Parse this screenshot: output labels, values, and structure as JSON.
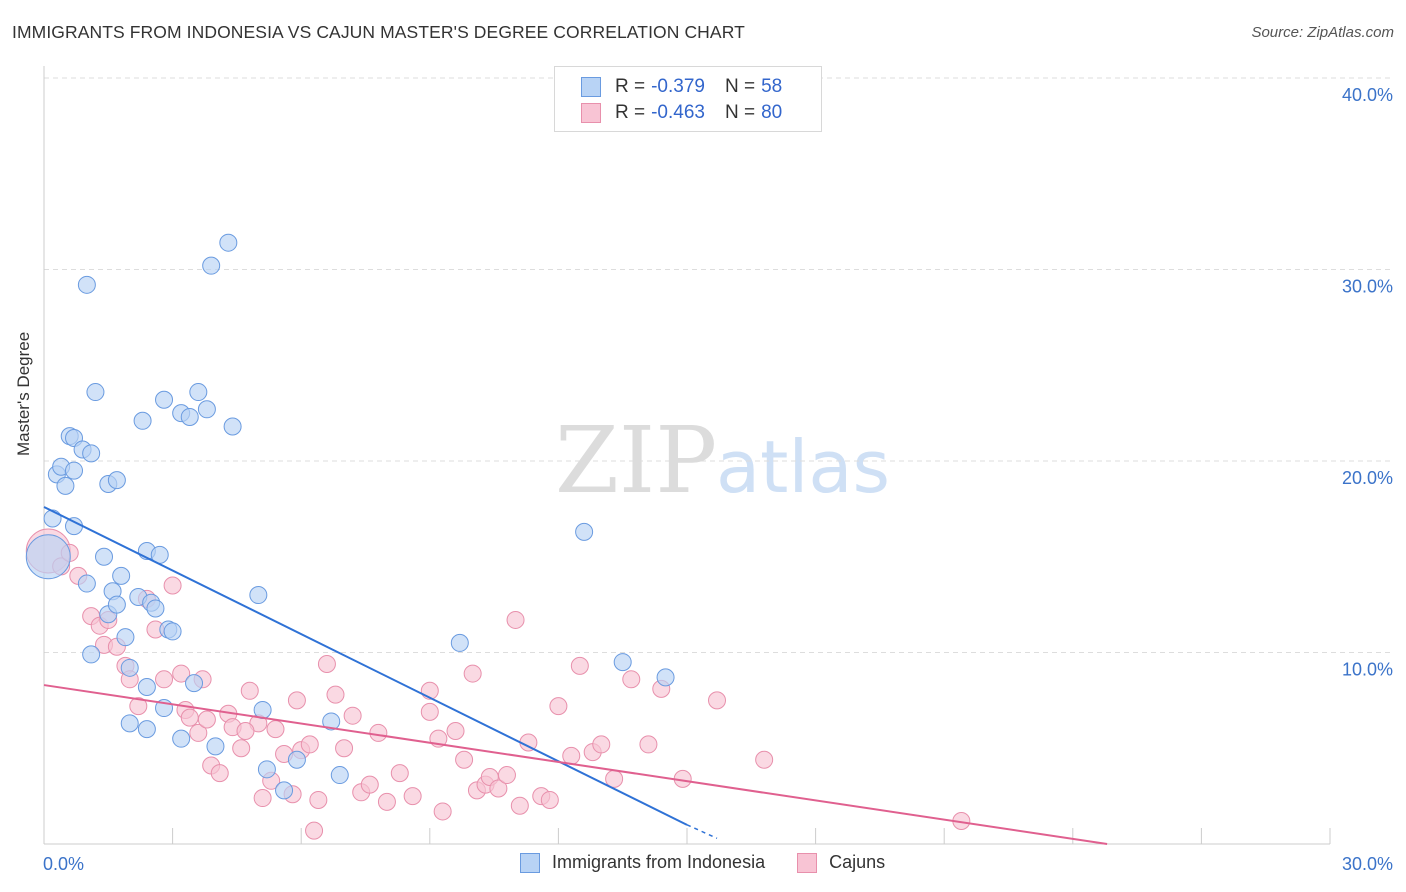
{
  "title": "IMMIGRANTS FROM INDONESIA VS CAJUN MASTER'S DEGREE CORRELATION CHART",
  "source": "Source: ZipAtlas.com",
  "watermark": {
    "zip": "ZIP",
    "atlas": "atlas"
  },
  "legend": {
    "r_label": "R =",
    "n_label": "N =",
    "series": [
      {
        "name": "Immigrants from Indonesia",
        "r": "-0.379",
        "n": "58",
        "fill": "#b8d3f5",
        "stroke": "#6a9be0"
      },
      {
        "name": "Cajuns",
        "r": "-0.463",
        "n": "80",
        "fill": "#f8c4d4",
        "stroke": "#e890ac"
      }
    ]
  },
  "colors": {
    "blue_dot_fill": "#b8d3f5",
    "blue_dot_stroke": "#6a9be0",
    "blue_line": "#2f72d6",
    "pink_dot_fill": "#f8c4d4",
    "pink_dot_stroke": "#e890ac",
    "pink_line": "#e0608f",
    "tick_label": "#3b73c9",
    "grid": "#dddddd"
  },
  "chart_data": {
    "type": "scatter",
    "title": "IMMIGRANTS FROM INDONESIA VS CAJUN MASTER'S DEGREE CORRELATION CHART",
    "xlabel": "",
    "ylabel": "Master's Degree",
    "xlim": [
      0,
      30
    ],
    "ylim": [
      0,
      40
    ],
    "x_tick_labels": [
      "0.0%",
      "30.0%"
    ],
    "y_ticks": [
      10,
      20,
      30,
      40
    ],
    "y_tick_labels": [
      "10.0%",
      "20.0%",
      "30.0%",
      "40.0%"
    ],
    "grid": true,
    "series": [
      {
        "name": "Immigrants from Indonesia",
        "r": -0.379,
        "n": 58,
        "trend": {
          "x": [
            0,
            15.0
          ],
          "y": [
            17.6,
            1.0
          ],
          "dashed_extension": {
            "x": [
              15.0,
              15.7
            ],
            "y": [
              1.0,
              0.3
            ]
          }
        },
        "points": [
          {
            "x": 0.1,
            "y": 15.0,
            "big": true
          },
          {
            "x": 0.2,
            "y": 17.0
          },
          {
            "x": 0.3,
            "y": 19.3
          },
          {
            "x": 0.4,
            "y": 19.7
          },
          {
            "x": 0.5,
            "y": 18.7
          },
          {
            "x": 0.6,
            "y": 21.3
          },
          {
            "x": 0.7,
            "y": 21.2
          },
          {
            "x": 0.9,
            "y": 20.6
          },
          {
            "x": 1.1,
            "y": 20.4
          },
          {
            "x": 0.7,
            "y": 19.5
          },
          {
            "x": 1.0,
            "y": 13.6
          },
          {
            "x": 0.7,
            "y": 16.6
          },
          {
            "x": 1.4,
            "y": 15.0
          },
          {
            "x": 1.5,
            "y": 18.8
          },
          {
            "x": 1.7,
            "y": 19.0
          },
          {
            "x": 1.2,
            "y": 23.6
          },
          {
            "x": 1.0,
            "y": 29.2
          },
          {
            "x": 1.5,
            "y": 12.0
          },
          {
            "x": 1.6,
            "y": 13.2
          },
          {
            "x": 1.7,
            "y": 12.5
          },
          {
            "x": 1.8,
            "y": 14.0
          },
          {
            "x": 1.9,
            "y": 10.8
          },
          {
            "x": 2.0,
            "y": 9.2
          },
          {
            "x": 2.2,
            "y": 12.9
          },
          {
            "x": 2.3,
            "y": 22.1
          },
          {
            "x": 2.4,
            "y": 15.3
          },
          {
            "x": 2.5,
            "y": 12.6
          },
          {
            "x": 2.6,
            "y": 12.3
          },
          {
            "x": 2.7,
            "y": 15.1
          },
          {
            "x": 2.8,
            "y": 23.2
          },
          {
            "x": 2.9,
            "y": 11.2
          },
          {
            "x": 3.0,
            "y": 11.1
          },
          {
            "x": 3.2,
            "y": 22.5
          },
          {
            "x": 3.4,
            "y": 22.3
          },
          {
            "x": 3.6,
            "y": 23.6
          },
          {
            "x": 3.8,
            "y": 22.7
          },
          {
            "x": 3.9,
            "y": 30.2
          },
          {
            "x": 4.3,
            "y": 31.4
          },
          {
            "x": 4.4,
            "y": 21.8
          },
          {
            "x": 2.4,
            "y": 8.2
          },
          {
            "x": 2.8,
            "y": 7.1
          },
          {
            "x": 3.2,
            "y": 5.5
          },
          {
            "x": 3.5,
            "y": 8.4
          },
          {
            "x": 2.0,
            "y": 6.3
          },
          {
            "x": 2.4,
            "y": 6.0
          },
          {
            "x": 4.0,
            "y": 5.1
          },
          {
            "x": 5.0,
            "y": 13.0
          },
          {
            "x": 5.1,
            "y": 7.0
          },
          {
            "x": 5.2,
            "y": 3.9
          },
          {
            "x": 5.6,
            "y": 2.8
          },
          {
            "x": 5.9,
            "y": 4.4
          },
          {
            "x": 6.7,
            "y": 6.4
          },
          {
            "x": 6.9,
            "y": 3.6
          },
          {
            "x": 9.7,
            "y": 10.5
          },
          {
            "x": 12.6,
            "y": 16.3
          },
          {
            "x": 13.5,
            "y": 9.5
          },
          {
            "x": 14.5,
            "y": 8.7
          },
          {
            "x": 1.1,
            "y": 9.9
          }
        ]
      },
      {
        "name": "Cajuns",
        "r": -0.463,
        "n": 80,
        "trend": {
          "x": [
            0,
            24.8
          ],
          "y": [
            8.3,
            0.0
          ]
        },
        "points": [
          {
            "x": 0.1,
            "y": 15.3,
            "big": true
          },
          {
            "x": 0.4,
            "y": 14.5
          },
          {
            "x": 0.6,
            "y": 15.2
          },
          {
            "x": 0.8,
            "y": 14.0
          },
          {
            "x": 1.1,
            "y": 11.9
          },
          {
            "x": 1.3,
            "y": 11.4
          },
          {
            "x": 1.4,
            "y": 10.4
          },
          {
            "x": 1.5,
            "y": 11.7
          },
          {
            "x": 1.7,
            "y": 10.3
          },
          {
            "x": 1.9,
            "y": 9.3
          },
          {
            "x": 2.0,
            "y": 8.6
          },
          {
            "x": 2.2,
            "y": 7.2
          },
          {
            "x": 2.4,
            "y": 12.8
          },
          {
            "x": 2.6,
            "y": 11.2
          },
          {
            "x": 2.8,
            "y": 8.6
          },
          {
            "x": 3.0,
            "y": 13.5
          },
          {
            "x": 3.2,
            "y": 8.9
          },
          {
            "x": 3.3,
            "y": 7.0
          },
          {
            "x": 3.4,
            "y": 6.6
          },
          {
            "x": 3.6,
            "y": 5.8
          },
          {
            "x": 3.7,
            "y": 8.6
          },
          {
            "x": 3.8,
            "y": 6.5
          },
          {
            "x": 3.9,
            "y": 4.1
          },
          {
            "x": 4.1,
            "y": 3.7
          },
          {
            "x": 4.3,
            "y": 6.8
          },
          {
            "x": 4.4,
            "y": 6.1
          },
          {
            "x": 4.6,
            "y": 5.0
          },
          {
            "x": 4.8,
            "y": 8.0
          },
          {
            "x": 5.0,
            "y": 6.3
          },
          {
            "x": 5.1,
            "y": 2.4
          },
          {
            "x": 5.3,
            "y": 3.3
          },
          {
            "x": 5.4,
            "y": 6.0
          },
          {
            "x": 5.6,
            "y": 4.7
          },
          {
            "x": 5.8,
            "y": 2.6
          },
          {
            "x": 6.0,
            "y": 4.9
          },
          {
            "x": 6.2,
            "y": 5.2
          },
          {
            "x": 6.4,
            "y": 2.3
          },
          {
            "x": 6.6,
            "y": 9.4
          },
          {
            "x": 6.8,
            "y": 7.8
          },
          {
            "x": 7.0,
            "y": 5.0
          },
          {
            "x": 7.2,
            "y": 6.7
          },
          {
            "x": 7.4,
            "y": 2.7
          },
          {
            "x": 7.6,
            "y": 3.1
          },
          {
            "x": 7.8,
            "y": 5.8
          },
          {
            "x": 6.3,
            "y": 0.7
          },
          {
            "x": 8.3,
            "y": 3.7
          },
          {
            "x": 8.6,
            "y": 2.5
          },
          {
            "x": 9.0,
            "y": 8.0
          },
          {
            "x": 9.2,
            "y": 5.5
          },
          {
            "x": 9.3,
            "y": 1.7
          },
          {
            "x": 9.6,
            "y": 5.9
          },
          {
            "x": 9.8,
            "y": 4.4
          },
          {
            "x": 10.0,
            "y": 8.9
          },
          {
            "x": 10.1,
            "y": 2.8
          },
          {
            "x": 10.3,
            "y": 3.1
          },
          {
            "x": 10.4,
            "y": 3.5
          },
          {
            "x": 10.6,
            "y": 2.9
          },
          {
            "x": 10.8,
            "y": 3.6
          },
          {
            "x": 11.0,
            "y": 11.7
          },
          {
            "x": 11.3,
            "y": 5.3
          },
          {
            "x": 11.6,
            "y": 2.5
          },
          {
            "x": 11.8,
            "y": 2.3
          },
          {
            "x": 12.0,
            "y": 7.2
          },
          {
            "x": 12.3,
            "y": 4.6
          },
          {
            "x": 12.5,
            "y": 9.3
          },
          {
            "x": 12.8,
            "y": 4.8
          },
          {
            "x": 13.0,
            "y": 5.2
          },
          {
            "x": 13.3,
            "y": 3.4
          },
          {
            "x": 13.7,
            "y": 8.6
          },
          {
            "x": 14.1,
            "y": 5.2
          },
          {
            "x": 14.4,
            "y": 8.1
          },
          {
            "x": 14.9,
            "y": 3.4
          },
          {
            "x": 15.7,
            "y": 7.5
          },
          {
            "x": 16.8,
            "y": 4.4
          },
          {
            "x": 21.4,
            "y": 1.2
          },
          {
            "x": 4.7,
            "y": 5.9
          },
          {
            "x": 8.0,
            "y": 2.2
          },
          {
            "x": 5.9,
            "y": 7.5
          },
          {
            "x": 9.0,
            "y": 6.9
          },
          {
            "x": 11.1,
            "y": 2.0
          }
        ]
      }
    ]
  }
}
